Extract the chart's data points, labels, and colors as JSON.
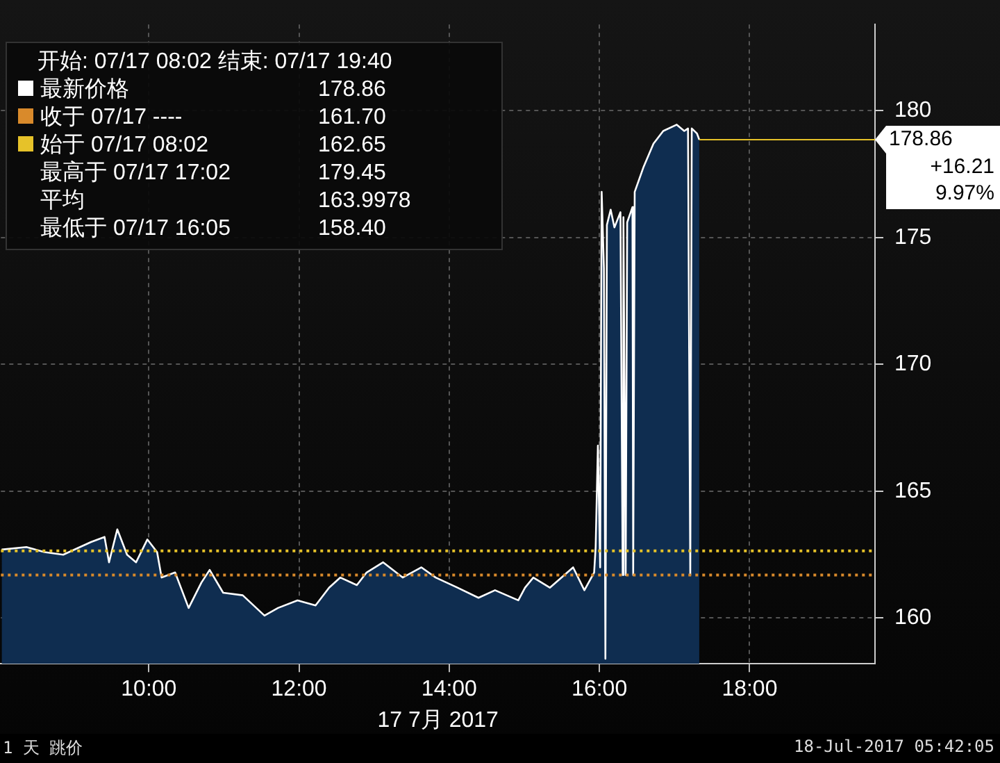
{
  "chart_data": {
    "type": "area",
    "xlabel": "17 7月 2017",
    "x": [
      8.04,
      8.37,
      8.61,
      8.86,
      9.23,
      9.41,
      9.47,
      9.58,
      9.71,
      9.83,
      9.98,
      10.11,
      10.17,
      10.35,
      10.53,
      10.7,
      10.81,
      10.99,
      11.25,
      11.54,
      11.72,
      11.98,
      12.22,
      12.4,
      12.55,
      12.77,
      12.9,
      13.12,
      13.38,
      13.63,
      13.82,
      14.11,
      14.39,
      14.61,
      14.92,
      15.01,
      15.12,
      15.34,
      15.65,
      15.8,
      15.93,
      15.95,
      15.98,
      16.01,
      16.03,
      16.06,
      16.08,
      16.1,
      16.15,
      16.2,
      16.28,
      16.31,
      16.32,
      16.35,
      16.37,
      16.44,
      16.45,
      16.47,
      16.59,
      16.72,
      16.85,
      17.03,
      17.13,
      17.18,
      17.21,
      17.23,
      17.3,
      17.33
    ],
    "series": [
      {
        "color": "#0f2d50",
        "values": [
          162.7,
          162.8,
          162.6,
          162.5,
          163.0,
          163.2,
          162.2,
          163.5,
          162.5,
          162.2,
          163.1,
          162.6,
          161.6,
          161.8,
          160.4,
          161.4,
          161.9,
          161.0,
          160.9,
          160.1,
          160.4,
          160.7,
          160.5,
          161.2,
          161.6,
          161.3,
          161.8,
          162.2,
          161.6,
          162.0,
          161.6,
          161.2,
          160.8,
          161.1,
          160.7,
          161.2,
          161.6,
          161.2,
          162.0,
          161.1,
          161.8,
          162.8,
          166.8,
          162.0,
          176.8,
          173.8,
          158.4,
          175.5,
          176.1,
          175.4,
          176.0,
          161.7,
          175.8,
          161.7,
          175.6,
          176.2,
          161.7,
          176.8,
          177.8,
          178.7,
          179.2,
          179.45,
          179.2,
          179.3,
          161.7,
          179.3,
          179.1,
          178.86
        ]
      }
    ],
    "xlim": [
      8.03,
      19.67
    ],
    "ylim": [
      158.2,
      183.4
    ],
    "xticks": [
      {
        "value": 10,
        "label": "10:00"
      },
      {
        "value": 12,
        "label": "12:00"
      },
      {
        "value": 14,
        "label": "14:00"
      },
      {
        "value": 16,
        "label": "16:00"
      },
      {
        "value": 18,
        "label": "18:00"
      }
    ],
    "yticks": [
      160,
      165,
      170,
      175,
      180
    ],
    "grid": true,
    "legend": false,
    "ref_lines": [
      {
        "axis": "y",
        "value": 162.65,
        "color": "#e6c229",
        "line_style": "dotted"
      },
      {
        "axis": "y",
        "value": 161.7,
        "color": "#d98a2b",
        "line_style": "dotted"
      },
      {
        "axis": "y",
        "value": 178.86,
        "label": "178.86",
        "color": "#e6c229",
        "line_style": "solid"
      }
    ],
    "annotations": [
      "开始: 07/17 08:02 结束: 07/17 19:40",
      "最新价格",
      "178.86",
      "收于 07/17 ----",
      "161.70",
      "始于 07/17 08:02",
      "162.65",
      "最高于 07/17 17:02",
      "179.45",
      "平均",
      "163.9978",
      "最低于 07/17 16:05",
      "158.40",
      "+16.21",
      "9.97%",
      "1 天 跳价",
      "18-Jul-2017 05:42:05"
    ]
  }
}
